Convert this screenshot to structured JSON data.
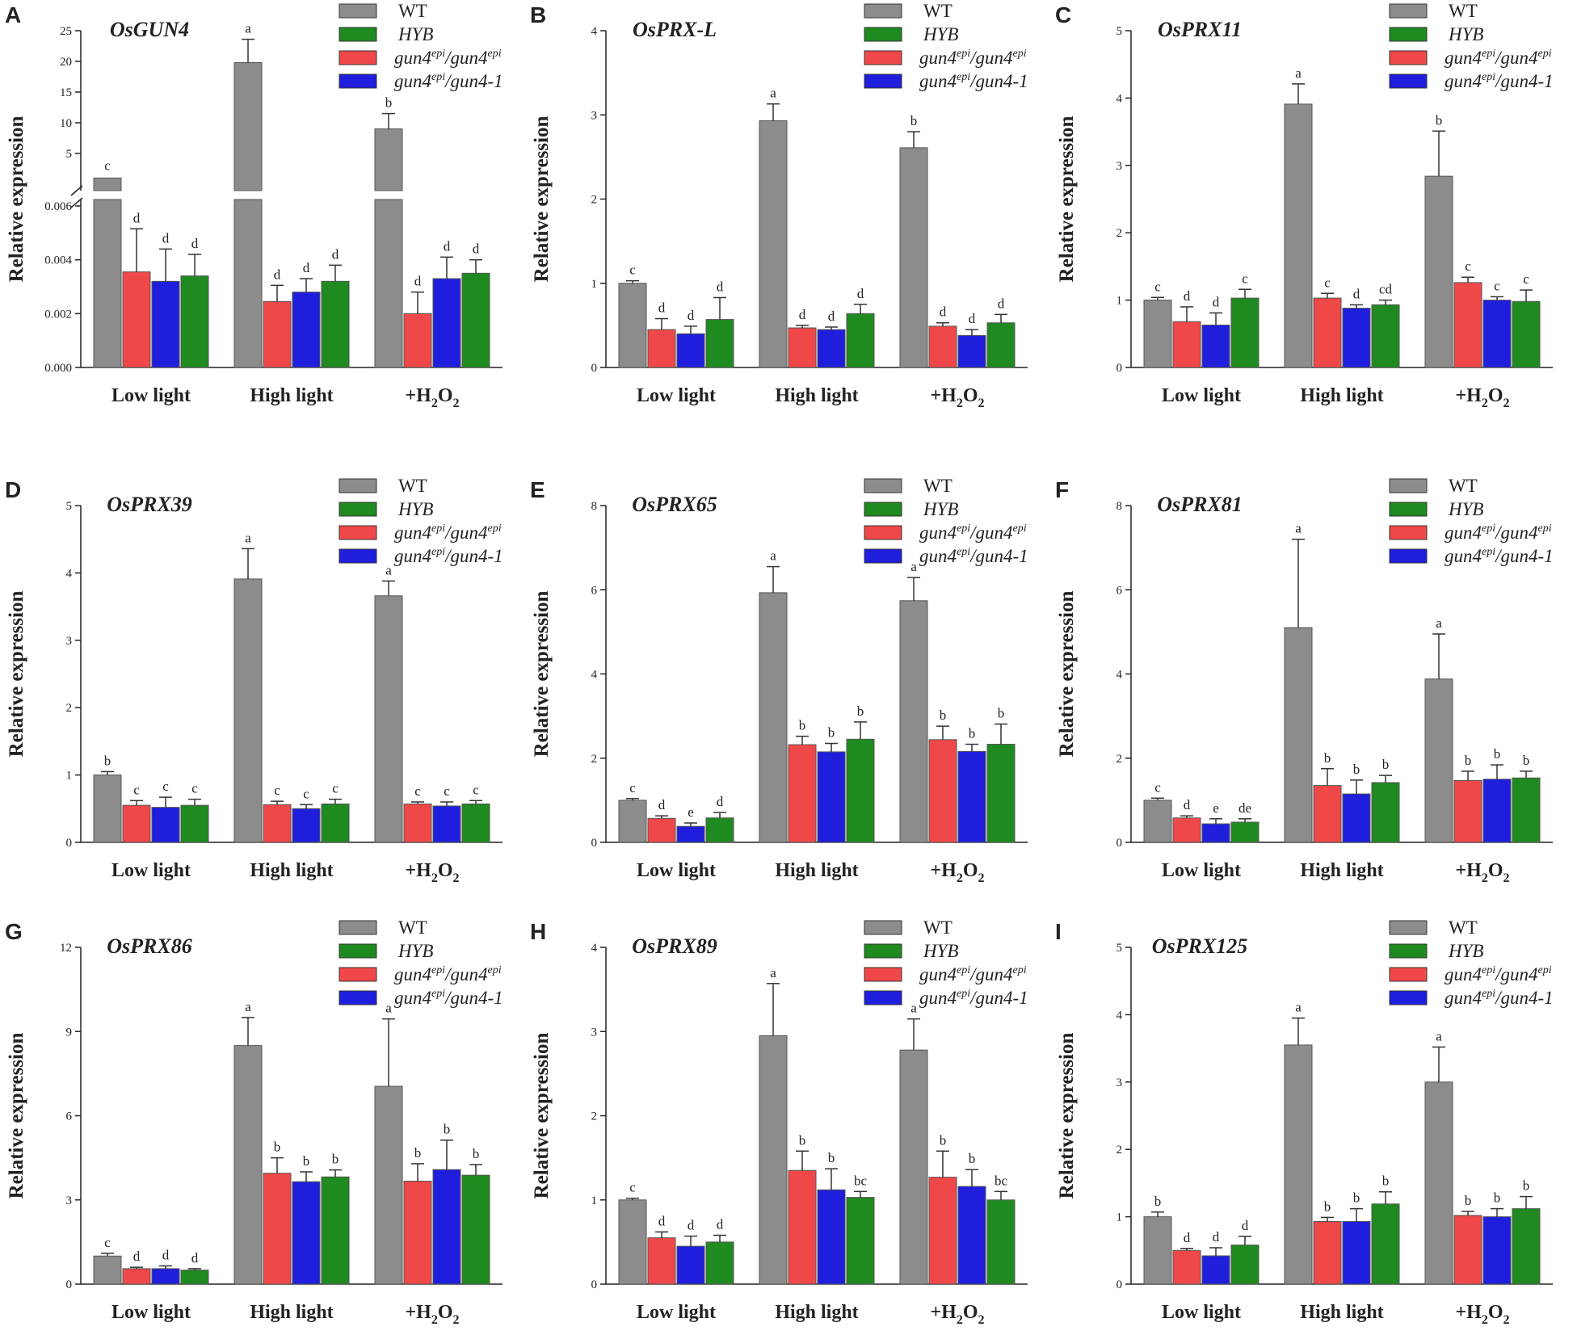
{
  "figure": {
    "series": [
      {
        "key": "wt",
        "name": "WT",
        "color": "#8c8c8c"
      },
      {
        "key": "hyb",
        "name": "HYB",
        "color": "#1f8a1f"
      },
      {
        "key": "g1",
        "name": "gun4epi/gun4epi",
        "base1": "gun4",
        "sup1": "epi",
        "base2": "gun4",
        "sup2": "epi",
        "color": "#f04848"
      },
      {
        "key": "g2",
        "name": "gun4epi/gun4-1",
        "base1": "gun4",
        "sup1": "epi",
        "base2": "gun4-1",
        "sup2": "",
        "color": "#1e1edc"
      }
    ],
    "bar_order": [
      "wt",
      "g1",
      "g2",
      "hyb"
    ],
    "groups": [
      {
        "label": "Low light"
      },
      {
        "label": "High light"
      },
      {
        "label": "+H",
        "sub": "2",
        "tail": "O",
        "sub2": "2"
      }
    ],
    "ylabel": "Relative expression"
  },
  "chart_data": [
    {
      "letter": "A",
      "title": "OsGUN4",
      "type": "bar",
      "broken_axis": true,
      "lower": {
        "ylim": [
          0,
          0.006
        ],
        "ticks": [
          "0.000",
          "0.002",
          "0.004",
          "0.006"
        ]
      },
      "upper": {
        "ylim": [
          0,
          25
        ],
        "ticks": [
          "5",
          "10",
          "15",
          "20",
          "25"
        ]
      },
      "groups": [
        {
          "values": [
            1.0,
            0.00355,
            0.0032,
            0.0034
          ],
          "errors": [
            0,
            0.0016,
            0.0012,
            0.0008
          ],
          "letters": [
            "c",
            "d",
            "d",
            "d"
          ]
        },
        {
          "values": [
            19.8,
            0.00245,
            0.0028,
            0.0032
          ],
          "errors": [
            3.8,
            0.0006,
            0.0005,
            0.0006
          ],
          "letters": [
            "a",
            "d",
            "d",
            "d"
          ]
        },
        {
          "values": [
            9.0,
            0.002,
            0.0033,
            0.0035
          ],
          "errors": [
            2.5,
            0.0008,
            0.0008,
            0.0005
          ],
          "letters": [
            "b",
            "d",
            "d",
            "d"
          ]
        }
      ]
    },
    {
      "letter": "B",
      "title": "OsPRX-L",
      "type": "bar",
      "ylim": [
        0,
        4
      ],
      "ticks": [
        "0",
        "1",
        "2",
        "3",
        "4"
      ],
      "groups": [
        {
          "values": [
            1.0,
            0.45,
            0.4,
            0.57
          ],
          "errors": [
            0.03,
            0.13,
            0.09,
            0.26
          ],
          "letters": [
            "c",
            "d",
            "d",
            "d"
          ]
        },
        {
          "values": [
            2.93,
            0.47,
            0.45,
            0.64
          ],
          "errors": [
            0.2,
            0.03,
            0.03,
            0.11
          ],
          "letters": [
            "a",
            "d",
            "d",
            "d"
          ]
        },
        {
          "values": [
            2.61,
            0.49,
            0.38,
            0.53
          ],
          "errors": [
            0.19,
            0.04,
            0.07,
            0.1
          ],
          "letters": [
            "b",
            "d",
            "d",
            "d"
          ]
        }
      ]
    },
    {
      "letter": "C",
      "title": "OsPRX11",
      "type": "bar",
      "ylim": [
        0,
        5
      ],
      "ticks": [
        "0",
        "1",
        "2",
        "3",
        "4",
        "5"
      ],
      "groups": [
        {
          "values": [
            1.0,
            0.68,
            0.63,
            1.03
          ],
          "errors": [
            0.04,
            0.22,
            0.18,
            0.13
          ],
          "letters": [
            "c",
            "d",
            "d",
            "c"
          ]
        },
        {
          "values": [
            3.91,
            1.03,
            0.88,
            0.93
          ],
          "errors": [
            0.3,
            0.07,
            0.05,
            0.07
          ],
          "letters": [
            "a",
            "c",
            "d",
            "cd"
          ]
        },
        {
          "values": [
            2.84,
            1.26,
            1.0,
            0.98
          ],
          "errors": [
            0.67,
            0.08,
            0.05,
            0.17
          ],
          "letters": [
            "b",
            "c",
            "c",
            "c"
          ]
        }
      ]
    },
    {
      "letter": "D",
      "title": "OsPRX39",
      "type": "bar",
      "ylim": [
        0,
        5
      ],
      "ticks": [
        "0",
        "1",
        "2",
        "3",
        "4",
        "5"
      ],
      "groups": [
        {
          "values": [
            1.0,
            0.55,
            0.52,
            0.55
          ],
          "errors": [
            0.05,
            0.07,
            0.15,
            0.09
          ],
          "letters": [
            "b",
            "c",
            "c",
            "c"
          ]
        },
        {
          "values": [
            3.91,
            0.56,
            0.5,
            0.57
          ],
          "errors": [
            0.45,
            0.05,
            0.06,
            0.07
          ],
          "letters": [
            "a",
            "c",
            "c",
            "c"
          ]
        },
        {
          "values": [
            3.66,
            0.57,
            0.54,
            0.57
          ],
          "errors": [
            0.22,
            0.03,
            0.06,
            0.05
          ],
          "letters": [
            "a",
            "c",
            "c",
            "c"
          ]
        }
      ]
    },
    {
      "letter": "E",
      "title": "OsPRX65",
      "type": "bar",
      "ylim": [
        0,
        8
      ],
      "ticks": [
        "0",
        "2",
        "4",
        "6",
        "8"
      ],
      "groups": [
        {
          "values": [
            1.0,
            0.57,
            0.38,
            0.58
          ],
          "errors": [
            0.04,
            0.06,
            0.08,
            0.13
          ],
          "letters": [
            "c",
            "d",
            "e",
            "d"
          ]
        },
        {
          "values": [
            5.93,
            2.32,
            2.15,
            2.45
          ],
          "errors": [
            0.62,
            0.2,
            0.2,
            0.41
          ],
          "letters": [
            "a",
            "b",
            "b",
            "b"
          ]
        },
        {
          "values": [
            5.74,
            2.44,
            2.16,
            2.33
          ],
          "errors": [
            0.55,
            0.32,
            0.17,
            0.48
          ],
          "letters": [
            "a",
            "b",
            "b",
            "b"
          ]
        }
      ]
    },
    {
      "letter": "F",
      "title": "OsPRX81",
      "type": "bar",
      "ylim": [
        0,
        8
      ],
      "ticks": [
        "0",
        "2",
        "4",
        "6",
        "8"
      ],
      "groups": [
        {
          "values": [
            1.0,
            0.58,
            0.44,
            0.48
          ],
          "errors": [
            0.05,
            0.05,
            0.12,
            0.08
          ],
          "letters": [
            "c",
            "d",
            "e",
            "de"
          ]
        },
        {
          "values": [
            5.1,
            1.35,
            1.15,
            1.42
          ],
          "errors": [
            2.1,
            0.4,
            0.33,
            0.17
          ],
          "letters": [
            "a",
            "b",
            "b",
            "b"
          ]
        },
        {
          "values": [
            3.88,
            1.47,
            1.5,
            1.53
          ],
          "errors": [
            1.07,
            0.22,
            0.34,
            0.16
          ],
          "letters": [
            "a",
            "b",
            "b",
            "b"
          ]
        }
      ]
    },
    {
      "letter": "G",
      "title": "OsPRX86",
      "type": "bar",
      "ylim": [
        0,
        12
      ],
      "ticks": [
        "0",
        "3",
        "6",
        "9",
        "12"
      ],
      "groups": [
        {
          "values": [
            1.0,
            0.55,
            0.55,
            0.5
          ],
          "errors": [
            0.1,
            0.05,
            0.1,
            0.05
          ],
          "letters": [
            "c",
            "d",
            "d",
            "d"
          ]
        },
        {
          "values": [
            8.5,
            3.95,
            3.65,
            3.82
          ],
          "errors": [
            1.0,
            0.55,
            0.35,
            0.25
          ],
          "letters": [
            "a",
            "b",
            "b",
            "b"
          ]
        },
        {
          "values": [
            7.05,
            3.67,
            4.08,
            3.88
          ],
          "errors": [
            2.4,
            0.62,
            1.05,
            0.38
          ],
          "letters": [
            "a",
            "b",
            "b",
            "b"
          ]
        }
      ]
    },
    {
      "letter": "H",
      "title": "OsPRX89",
      "type": "bar",
      "ylim": [
        0,
        4
      ],
      "ticks": [
        "0",
        "1",
        "2",
        "3",
        "4"
      ],
      "groups": [
        {
          "values": [
            1.0,
            0.55,
            0.45,
            0.5
          ],
          "errors": [
            0.02,
            0.07,
            0.12,
            0.08
          ],
          "letters": [
            "c",
            "d",
            "d",
            "d"
          ]
        },
        {
          "values": [
            2.95,
            1.35,
            1.12,
            1.03
          ],
          "errors": [
            0.62,
            0.23,
            0.25,
            0.07
          ],
          "letters": [
            "a",
            "b",
            "b",
            "bc"
          ]
        },
        {
          "values": [
            2.78,
            1.27,
            1.16,
            1.0
          ],
          "errors": [
            0.37,
            0.31,
            0.2,
            0.1
          ],
          "letters": [
            "a",
            "b",
            "b",
            "bc"
          ]
        }
      ]
    },
    {
      "letter": "I",
      "title": "OsPRX125",
      "type": "bar",
      "ylim": [
        0,
        5
      ],
      "ticks": [
        "0",
        "1",
        "2",
        "3",
        "4",
        "5"
      ],
      "groups": [
        {
          "values": [
            1.0,
            0.5,
            0.42,
            0.58
          ],
          "errors": [
            0.07,
            0.03,
            0.12,
            0.13
          ],
          "letters": [
            "b",
            "d",
            "d",
            "d"
          ]
        },
        {
          "values": [
            3.55,
            0.93,
            0.93,
            1.19
          ],
          "errors": [
            0.4,
            0.06,
            0.19,
            0.18
          ],
          "letters": [
            "a",
            "b",
            "b",
            "b"
          ]
        },
        {
          "values": [
            3.0,
            1.02,
            1.0,
            1.12
          ],
          "errors": [
            0.52,
            0.06,
            0.12,
            0.18
          ],
          "letters": [
            "a",
            "b",
            "b",
            "b"
          ]
        }
      ]
    }
  ]
}
